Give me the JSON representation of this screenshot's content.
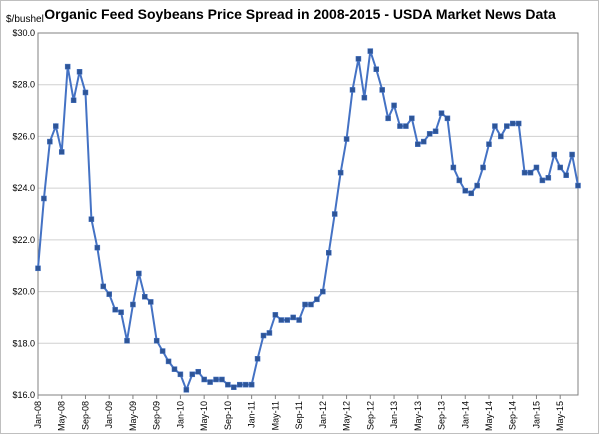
{
  "chart_data": {
    "type": "line",
    "title": "Organic Feed Soybeans Price Spread in 2008-2015 - USDA Market News Data",
    "ylabel": "$/bushel",
    "xlabel": "",
    "ylim": [
      16.0,
      30.0
    ],
    "yticks": [
      "$16.0",
      "$18.0",
      "$20.0",
      "$22.0",
      "$24.0",
      "$26.0",
      "$28.0",
      "$30.0"
    ],
    "ytick_values": [
      16,
      18,
      20,
      22,
      24,
      26,
      28,
      30
    ],
    "xticks": [
      "Jan-08",
      "May-08",
      "Sep-08",
      "Jan-09",
      "May-09",
      "Sep-09",
      "Jan-10",
      "May-10",
      "Sep-10",
      "Jan-11",
      "May-11",
      "Sep-11",
      "Jan-12",
      "May-12",
      "Sep-12",
      "Jan-13",
      "May-13",
      "Sep-13",
      "Jan-14",
      "May-14",
      "Sep-14",
      "Jan-15",
      "May-15"
    ],
    "grid": true,
    "color": "#4472C4",
    "marker_color": "#2E5597",
    "series": [
      {
        "values": [
          20.9,
          23.6,
          25.8,
          26.4,
          25.4,
          28.7,
          27.4,
          28.5,
          27.7,
          22.8,
          21.7,
          20.2,
          19.9,
          19.3,
          19.2,
          18.1,
          19.5,
          20.7,
          19.8,
          19.6,
          18.1,
          17.7,
          17.3,
          17.0,
          16.8,
          16.2,
          16.8,
          16.9,
          16.6,
          16.5,
          16.6,
          16.6,
          16.4,
          16.3,
          16.4,
          16.4,
          16.4,
          17.4,
          18.3,
          18.4,
          19.1,
          18.9,
          18.9,
          19.0,
          18.9,
          19.5,
          19.5,
          19.7,
          20.0,
          21.5,
          23.0,
          24.6,
          25.9,
          27.8,
          29.0,
          27.5,
          29.3,
          28.6,
          27.8,
          26.7,
          27.2,
          26.4,
          26.4,
          26.7,
          25.7,
          25.8,
          26.1,
          26.2,
          26.9,
          26.7,
          24.8,
          24.3,
          23.9,
          23.8,
          24.1,
          24.8,
          25.7,
          26.4,
          26.0,
          26.4,
          26.5,
          26.5,
          24.6,
          24.6,
          24.8,
          24.3,
          24.4,
          25.3,
          24.8,
          24.5,
          25.3,
          24.1
        ]
      }
    ]
  }
}
